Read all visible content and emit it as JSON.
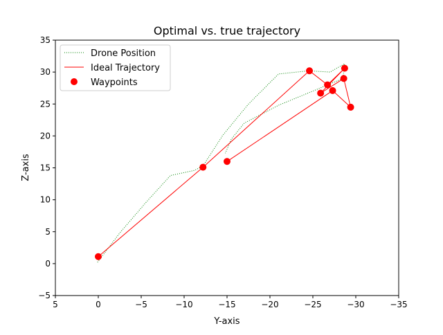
{
  "chart_data": {
    "type": "line",
    "title": "Optimal vs. true trajectory",
    "xlabel": "Y-axis",
    "ylabel": "Z-axis",
    "xlim": [
      5,
      -35
    ],
    "ylim": [
      -5,
      35
    ],
    "x_ticks": [
      "5",
      "0",
      "−5",
      "−10",
      "−15",
      "−20",
      "−25",
      "−30",
      "−35"
    ],
    "y_ticks": [
      "−5",
      "0",
      "5",
      "10",
      "15",
      "20",
      "25",
      "30",
      "35"
    ],
    "x_tick_values": [
      5,
      0,
      -5,
      -10,
      -15,
      -20,
      -25,
      -30,
      -35
    ],
    "y_tick_values": [
      -5,
      0,
      5,
      10,
      15,
      20,
      25,
      30,
      35
    ],
    "grid": false,
    "legend_position": "upper-left",
    "series": [
      {
        "name": "Drone Position",
        "style": "dotted",
        "color": "#008000",
        "x": [
          0.1,
          -2.5,
          -5.5,
          -8.4,
          -11.2,
          -12.2,
          -14.5,
          -17.5,
          -21.0,
          -24.5,
          -27.0,
          -28.7,
          -28.5,
          -25.5,
          -21.0,
          -17.0,
          -15.5,
          -14.8
        ],
        "y": [
          0.2,
          4.8,
          9.5,
          13.8,
          14.6,
          15.3,
          20.1,
          25.0,
          29.7,
          30.2,
          30.0,
          31.3,
          29.0,
          27.3,
          24.8,
          22.0,
          19.5,
          17.3
        ]
      },
      {
        "name": "Ideal Trajectory",
        "style": "solid",
        "color": "#ff0000",
        "x": [
          0,
          -12.2,
          -24.6,
          -26.7,
          -28.7,
          -25.9,
          -28.6,
          -29.4,
          -27.3,
          -15.0
        ],
        "y": [
          1.1,
          15.1,
          30.2,
          28.0,
          30.6,
          26.7,
          29.0,
          24.5,
          27.1,
          16.0
        ]
      },
      {
        "name": "Waypoints",
        "style": "markers",
        "color": "#ff0000",
        "x": [
          0,
          -12.2,
          -24.6,
          -26.7,
          -28.7,
          -25.9,
          -28.6,
          -29.4,
          -27.3,
          -15.0
        ],
        "y": [
          1.1,
          15.1,
          30.2,
          28.0,
          30.6,
          26.7,
          29.0,
          24.5,
          27.1,
          16.0
        ]
      }
    ]
  }
}
